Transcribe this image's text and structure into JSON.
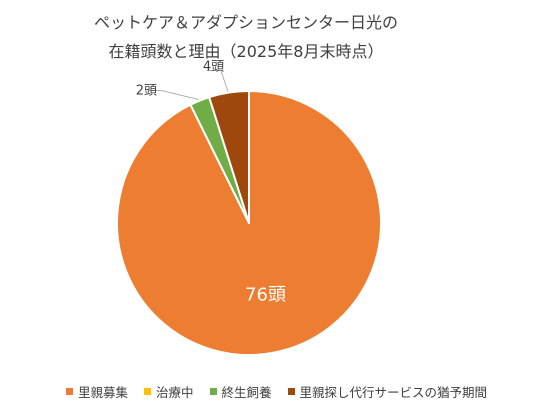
{
  "chart_data": {
    "type": "pie",
    "title_line_1": "ペットケア＆アダプションセンター日光の",
    "title_line_2": "在籍頭数と理由（2025年8月末時点）",
    "categories": [
      "里親募集",
      "治療中",
      "終生飼養",
      "里親探し代行サービスの猶予期間"
    ],
    "values": [
      76,
      0,
      2,
      4
    ],
    "data_labels": [
      "76頭",
      "",
      "2頭",
      "4頭"
    ],
    "colors": [
      "#ED7D31",
      "#FFC000",
      "#70AD47",
      "#9E480E"
    ],
    "legend_position": "bottom"
  }
}
